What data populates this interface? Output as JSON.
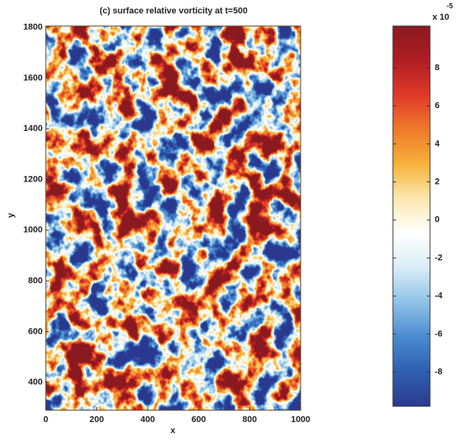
{
  "chart_data": {
    "type": "heatmap",
    "title": "(c) surface relative vorticity at t=500",
    "x_label": "x",
    "y_label": "y",
    "xlim": [
      0,
      1000
    ],
    "xticks": [
      0,
      200,
      400,
      600,
      800,
      1000
    ],
    "ylim": [
      290,
      1805
    ],
    "yticks": [
      400,
      600,
      800,
      1000,
      1200,
      1400,
      1600,
      1800
    ],
    "colorbar": {
      "clim": [
        -9.8,
        10.2
      ],
      "ticks": [
        -8,
        -6,
        -4,
        -2,
        0,
        2,
        4,
        6,
        8
      ],
      "multiplier": "x 10",
      "exponent": "-5",
      "colormap": [
        "#2a3a8f",
        "#2f5fb0",
        "#4a8ad0",
        "#8ec2e6",
        "#d8ecf6",
        "#ffffff",
        "#fbe8b0",
        "#f6b23a",
        "#ee7a2a",
        "#e03a2a",
        "#b01e24",
        "#8a1a20"
      ]
    }
  }
}
